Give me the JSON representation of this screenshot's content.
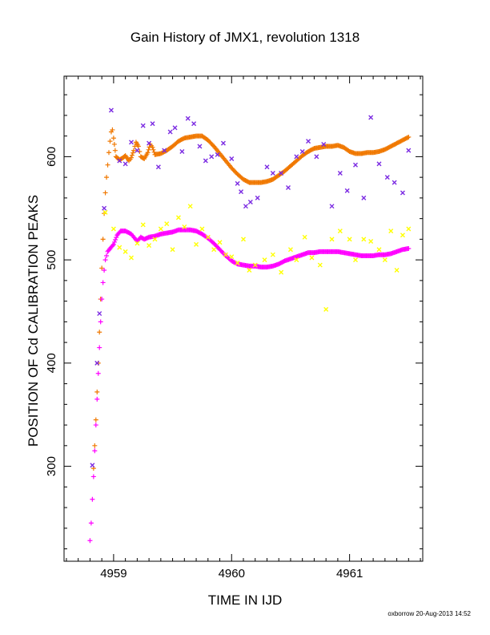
{
  "chart_data": {
    "type": "scatter",
    "title": "Gain History of JMX1, revolution 1318",
    "xlabel": "TIME IN IJD",
    "ylabel": "POSITION OF Cd CALIBRATION PEAKS",
    "xlim": [
      4958.58,
      4961.62
    ],
    "ylim": [
      208,
      678
    ],
    "xticks": [
      4959,
      4960,
      4961
    ],
    "xtick_labels": [
      "4959",
      "4960",
      "4961"
    ],
    "yticks": [
      300,
      400,
      500,
      600
    ],
    "ytick_labels": [
      "300",
      "400",
      "500",
      "600"
    ],
    "grid": false,
    "legend": "none",
    "series": [
      {
        "color": "#f07800",
        "marker": "plus",
        "style": "dense-trend",
        "points": [
          [
            4958.83,
            298
          ],
          [
            4958.84,
            320
          ],
          [
            4958.85,
            345
          ],
          [
            4958.86,
            372
          ],
          [
            4958.87,
            400
          ],
          [
            4958.88,
            430
          ],
          [
            4958.89,
            462
          ],
          [
            4958.9,
            492
          ],
          [
            4958.91,
            520
          ],
          [
            4958.92,
            545
          ],
          [
            4958.93,
            565
          ],
          [
            4958.94,
            580
          ],
          [
            4958.95,
            592
          ],
          [
            4958.96,
            604
          ],
          [
            4958.97,
            615
          ],
          [
            4958.98,
            624
          ],
          [
            4958.99,
            626
          ],
          [
            4959.0,
            618
          ],
          [
            4959.02,
            600
          ],
          [
            4959.05,
            597
          ],
          [
            4959.08,
            599
          ],
          [
            4959.1,
            601
          ],
          [
            4959.13,
            596
          ],
          [
            4959.15,
            599
          ],
          [
            4959.17,
            606
          ],
          [
            4959.19,
            614
          ],
          [
            4959.21,
            610
          ],
          [
            4959.23,
            600
          ],
          [
            4959.26,
            598
          ],
          [
            4959.29,
            604
          ],
          [
            4959.31,
            612
          ],
          [
            4959.33,
            609
          ],
          [
            4959.35,
            602
          ],
          [
            4959.4,
            603
          ],
          [
            4959.45,
            606
          ],
          [
            4959.5,
            610
          ],
          [
            4959.55,
            615
          ],
          [
            4959.6,
            618
          ],
          [
            4959.65,
            619
          ],
          [
            4959.7,
            620
          ],
          [
            4959.75,
            620
          ],
          [
            4959.8,
            616
          ],
          [
            4959.85,
            610
          ],
          [
            4959.9,
            603
          ],
          [
            4959.95,
            596
          ],
          [
            4960.0,
            589
          ],
          [
            4960.05,
            583
          ],
          [
            4960.1,
            578
          ],
          [
            4960.15,
            575
          ],
          [
            4960.2,
            575
          ],
          [
            4960.25,
            575
          ],
          [
            4960.3,
            576
          ],
          [
            4960.35,
            578
          ],
          [
            4960.4,
            582
          ],
          [
            4960.45,
            586
          ],
          [
            4960.5,
            591
          ],
          [
            4960.55,
            596
          ],
          [
            4960.6,
            601
          ],
          [
            4960.65,
            605
          ],
          [
            4960.7,
            608
          ],
          [
            4960.75,
            609
          ],
          [
            4960.8,
            610
          ],
          [
            4960.85,
            610
          ],
          [
            4960.9,
            611
          ],
          [
            4960.95,
            609
          ],
          [
            4961.0,
            605
          ],
          [
            4961.05,
            603
          ],
          [
            4961.1,
            603
          ],
          [
            4961.15,
            604
          ],
          [
            4961.2,
            604
          ],
          [
            4961.25,
            605
          ],
          [
            4961.3,
            607
          ],
          [
            4961.35,
            610
          ],
          [
            4961.4,
            613
          ],
          [
            4961.45,
            616
          ],
          [
            4961.5,
            619
          ]
        ]
      },
      {
        "color": "#ff00ff",
        "marker": "plus",
        "style": "dense-trend",
        "points": [
          [
            4958.8,
            228
          ],
          [
            4958.81,
            245
          ],
          [
            4958.82,
            268
          ],
          [
            4958.83,
            290
          ],
          [
            4958.84,
            315
          ],
          [
            4958.85,
            340
          ],
          [
            4958.86,
            365
          ],
          [
            4958.87,
            390
          ],
          [
            4958.88,
            415
          ],
          [
            4958.89,
            440
          ],
          [
            4958.9,
            462
          ],
          [
            4958.91,
            478
          ],
          [
            4958.92,
            490
          ],
          [
            4958.93,
            500
          ],
          [
            4958.95,
            508
          ],
          [
            4958.97,
            511
          ],
          [
            4959.0,
            515
          ],
          [
            4959.03,
            524
          ],
          [
            4959.06,
            528
          ],
          [
            4959.1,
            528
          ],
          [
            4959.15,
            525
          ],
          [
            4959.2,
            518
          ],
          [
            4959.23,
            522
          ],
          [
            4959.26,
            520
          ],
          [
            4959.3,
            522
          ],
          [
            4959.35,
            523
          ],
          [
            4959.4,
            525
          ],
          [
            4959.45,
            526
          ],
          [
            4959.5,
            527
          ],
          [
            4959.55,
            529
          ],
          [
            4959.6,
            529
          ],
          [
            4959.65,
            529
          ],
          [
            4959.7,
            528
          ],
          [
            4959.75,
            525
          ],
          [
            4959.8,
            521
          ],
          [
            4959.85,
            516
          ],
          [
            4959.9,
            510
          ],
          [
            4959.95,
            504
          ],
          [
            4960.0,
            499
          ],
          [
            4960.05,
            496
          ],
          [
            4960.1,
            495
          ],
          [
            4960.15,
            494
          ],
          [
            4960.2,
            494
          ],
          [
            4960.25,
            493
          ],
          [
            4960.3,
            493
          ],
          [
            4960.35,
            494
          ],
          [
            4960.4,
            496
          ],
          [
            4960.45,
            499
          ],
          [
            4960.5,
            501
          ],
          [
            4960.55,
            503
          ],
          [
            4960.6,
            505
          ],
          [
            4960.65,
            507
          ],
          [
            4960.7,
            507
          ],
          [
            4960.75,
            508
          ],
          [
            4960.8,
            508
          ],
          [
            4960.85,
            508
          ],
          [
            4960.9,
            508
          ],
          [
            4960.95,
            507
          ],
          [
            4961.0,
            506
          ],
          [
            4961.05,
            505
          ],
          [
            4961.1,
            504
          ],
          [
            4961.15,
            504
          ],
          [
            4961.2,
            504
          ],
          [
            4961.25,
            505
          ],
          [
            4961.3,
            505
          ],
          [
            4961.35,
            506
          ],
          [
            4961.4,
            508
          ],
          [
            4961.45,
            510
          ],
          [
            4961.5,
            511
          ]
        ]
      },
      {
        "color": "#7b2be2",
        "marker": "cross",
        "style": "scatter",
        "points": [
          [
            4958.82,
            301
          ],
          [
            4958.86,
            400
          ],
          [
            4958.88,
            448
          ],
          [
            4958.92,
            550
          ],
          [
            4958.98,
            645
          ],
          [
            4959.05,
            596
          ],
          [
            4959.1,
            593
          ],
          [
            4959.15,
            614
          ],
          [
            4959.2,
            606
          ],
          [
            4959.25,
            630
          ],
          [
            4959.3,
            613
          ],
          [
            4959.33,
            632
          ],
          [
            4959.38,
            590
          ],
          [
            4959.43,
            606
          ],
          [
            4959.48,
            624
          ],
          [
            4959.52,
            628
          ],
          [
            4959.58,
            605
          ],
          [
            4959.63,
            637
          ],
          [
            4959.68,
            632
          ],
          [
            4959.73,
            610
          ],
          [
            4959.78,
            596
          ],
          [
            4959.83,
            600
          ],
          [
            4959.88,
            602
          ],
          [
            4959.93,
            613
          ],
          [
            4960.0,
            598
          ],
          [
            4960.05,
            574
          ],
          [
            4960.08,
            566
          ],
          [
            4960.12,
            552
          ],
          [
            4960.16,
            556
          ],
          [
            4960.22,
            560
          ],
          [
            4960.3,
            590
          ],
          [
            4960.35,
            584
          ],
          [
            4960.42,
            584
          ],
          [
            4960.48,
            570
          ],
          [
            4960.55,
            600
          ],
          [
            4960.6,
            605
          ],
          [
            4960.65,
            615
          ],
          [
            4960.72,
            600
          ],
          [
            4960.78,
            612
          ],
          [
            4960.85,
            552
          ],
          [
            4960.92,
            584
          ],
          [
            4960.98,
            567
          ],
          [
            4961.05,
            592
          ],
          [
            4961.12,
            560
          ],
          [
            4961.18,
            638
          ],
          [
            4961.25,
            593
          ],
          [
            4961.32,
            580
          ],
          [
            4961.38,
            575
          ],
          [
            4961.45,
            565
          ],
          [
            4961.5,
            606
          ]
        ]
      },
      {
        "color": "#ffff00",
        "marker": "cross",
        "style": "scatter",
        "points": [
          [
            4958.93,
            546
          ],
          [
            4959.0,
            530
          ],
          [
            4959.05,
            512
          ],
          [
            4959.1,
            508
          ],
          [
            4959.15,
            502
          ],
          [
            4959.2,
            516
          ],
          [
            4959.25,
            534
          ],
          [
            4959.3,
            514
          ],
          [
            4959.35,
            520
          ],
          [
            4959.4,
            530
          ],
          [
            4959.45,
            535
          ],
          [
            4959.5,
            510
          ],
          [
            4959.55,
            541
          ],
          [
            4959.6,
            532
          ],
          [
            4959.65,
            552
          ],
          [
            4959.7,
            515
          ],
          [
            4959.75,
            530
          ],
          [
            4959.8,
            522
          ],
          [
            4959.85,
            510
          ],
          [
            4959.9,
            517
          ],
          [
            4959.95,
            505
          ],
          [
            4960.0,
            503
          ],
          [
            4960.05,
            497
          ],
          [
            4960.1,
            520
          ],
          [
            4960.15,
            490
          ],
          [
            4960.2,
            495
          ],
          [
            4960.28,
            500
          ],
          [
            4960.35,
            505
          ],
          [
            4960.42,
            488
          ],
          [
            4960.5,
            510
          ],
          [
            4960.55,
            500
          ],
          [
            4960.62,
            522
          ],
          [
            4960.68,
            502
          ],
          [
            4960.75,
            495
          ],
          [
            4960.8,
            452
          ],
          [
            4960.85,
            520
          ],
          [
            4960.92,
            528
          ],
          [
            4961.0,
            520
          ],
          [
            4961.05,
            500
          ],
          [
            4961.12,
            520
          ],
          [
            4961.18,
            518
          ],
          [
            4961.25,
            510
          ],
          [
            4961.3,
            500
          ],
          [
            4961.35,
            528
          ],
          [
            4961.4,
            490
          ],
          [
            4961.45,
            524
          ],
          [
            4961.5,
            530
          ]
        ]
      }
    ]
  },
  "footer": {
    "credit": "oxborrow 20-Aug-2013 14:52"
  }
}
